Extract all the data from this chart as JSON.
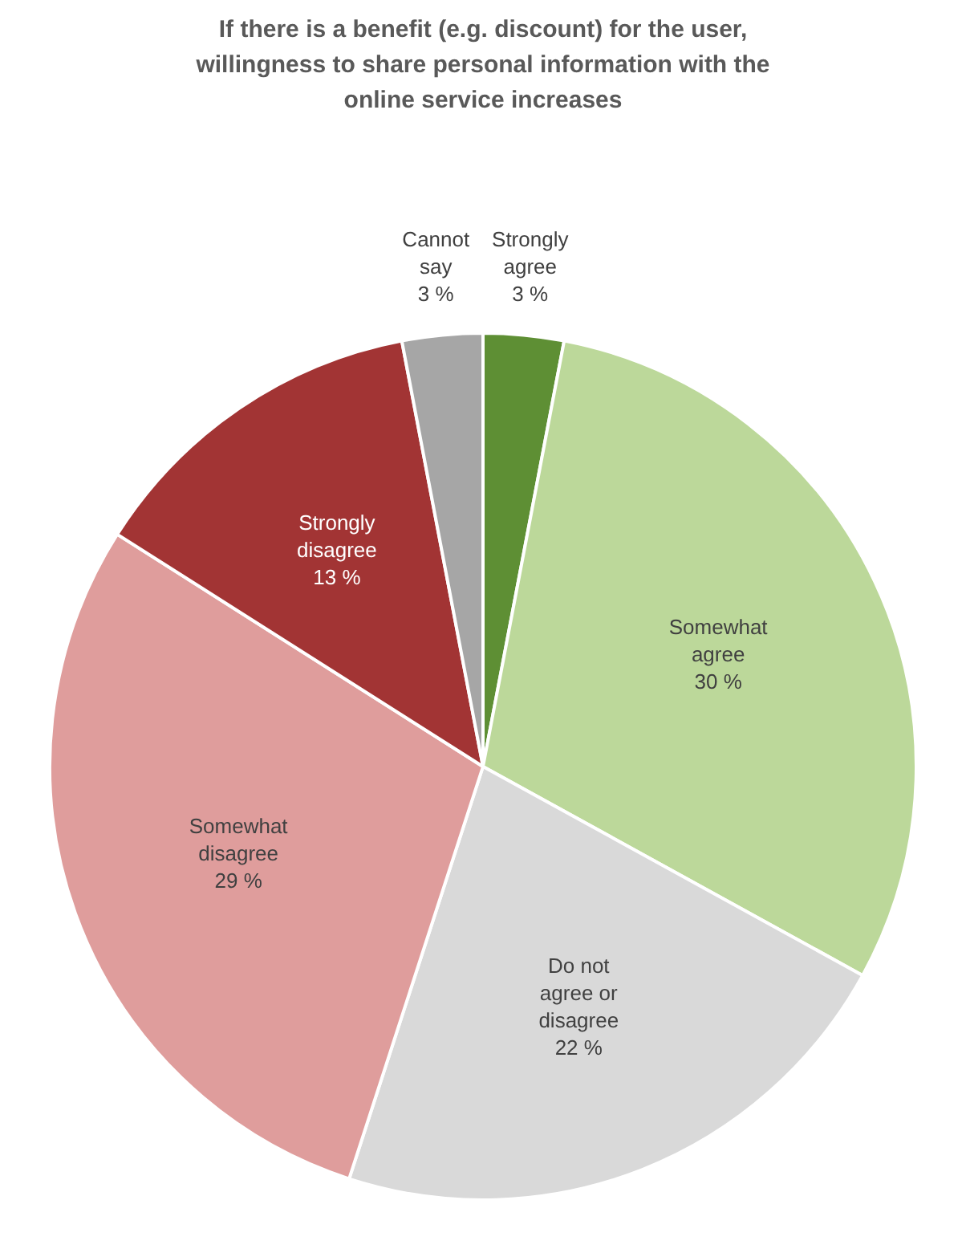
{
  "chart_data": {
    "type": "pie",
    "title": "If there is a benefit (e.g. discount) for the user, willingness to share personal information with the online service increases",
    "categories": [
      "Strongly agree",
      "Somewhat agree",
      "Do not agree or disagree",
      "Somewhat disagree",
      "Strongly disagree",
      "Cannot say"
    ],
    "values": [
      3,
      30,
      22,
      29,
      13,
      3
    ],
    "value_labels": [
      "3 %",
      "30 %",
      "22 %",
      "29 %",
      "13 %",
      "3 %"
    ],
    "colors": [
      "#5e8f34",
      "#bcd89a",
      "#d9d9d9",
      "#df9d9c",
      "#a23434",
      "#a6a6a6"
    ],
    "legend": false
  }
}
